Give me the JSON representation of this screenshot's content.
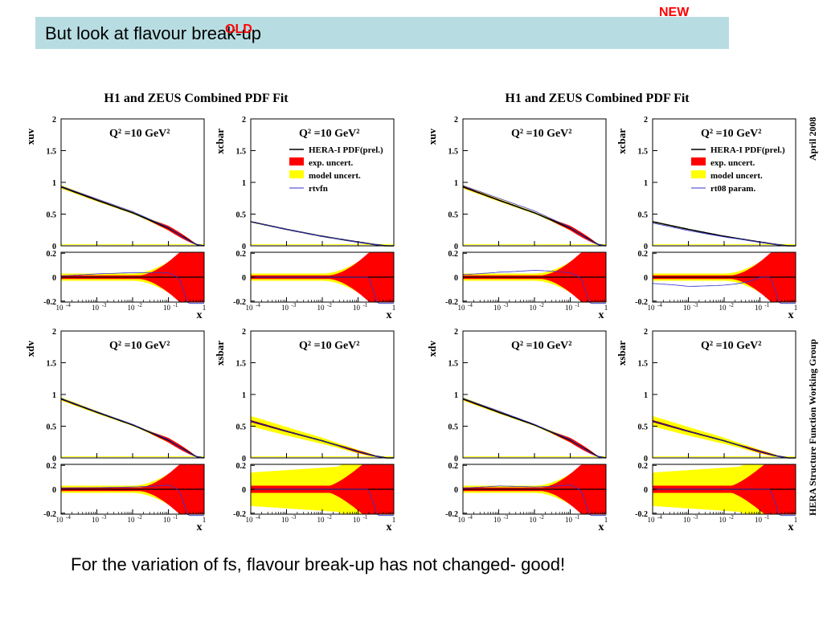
{
  "slide": {
    "title": "But look at flavour break-up",
    "label_old": "OLD",
    "label_new": "NEW",
    "caption": "For the variation of fs, flavour break-up has not changed- good!"
  },
  "figures": [
    {
      "title": "H1 and ZEUS Combined PDF Fit",
      "legend": [
        "HERA-I PDF(prel.)",
        "exp. uncert.",
        "model uncert.",
        "rtvfn"
      ]
    },
    {
      "title": "H1 and ZEUS Combined PDF Fit",
      "legend": [
        "HERA-I PDF(prel.)",
        "exp. uncert.",
        "model uncert.",
        "rt08 param."
      ],
      "side_label_top": "April 2008",
      "side_label_bottom": "HERA Structure Function Working Group"
    }
  ],
  "colors": {
    "title_bar": "#b7dde2",
    "exp_uncert": "#ff0000",
    "model_uncert": "#ffff00",
    "central": "#000000",
    "comparison": "#3333cc",
    "old_new_labels": "#ff0000"
  },
  "chart_data": [
    {
      "type": "line",
      "figure": "OLD",
      "panel": "xuv",
      "ylabel": "xuv",
      "annotation": "Q² =10 GeV²",
      "xscale": "log",
      "xlim": [
        0.0001,
        1
      ],
      "ylim": [
        0,
        2
      ],
      "x": [
        0.0001,
        0.001,
        0.01,
        0.1,
        0.3,
        0.6,
        1
      ],
      "series": [
        {
          "name": "HERA-I PDF(prel.)",
          "values": [
            0.93,
            0.72,
            0.52,
            0.28,
            0.12,
            0.02,
            0.0
          ]
        },
        {
          "name": "rtvfn",
          "values": [
            0.94,
            0.74,
            0.54,
            0.29,
            0.11,
            0.02,
            0.0
          ]
        }
      ],
      "ratio_panel": {
        "ylim": [
          -0.2,
          0.2
        ],
        "xlabel": "x"
      }
    },
    {
      "type": "line",
      "figure": "OLD",
      "panel": "xcbar",
      "ylabel": "xcbar",
      "annotation": "Q² =10 GeV²",
      "xscale": "log",
      "xlim": [
        0.0001,
        1
      ],
      "ylim": [
        0,
        2
      ],
      "x": [
        0.0001,
        0.001,
        0.01,
        0.1,
        0.3,
        0.6,
        1
      ],
      "series": [
        {
          "name": "HERA-I PDF(prel.)",
          "values": [
            0.38,
            0.26,
            0.15,
            0.06,
            0.02,
            0.0,
            0.0
          ]
        },
        {
          "name": "rtvfn",
          "values": [
            0.38,
            0.26,
            0.15,
            0.06,
            0.02,
            0.0,
            0.0
          ]
        }
      ],
      "ratio_panel": {
        "ylim": [
          -0.2,
          0.2
        ],
        "xlabel": "x"
      }
    },
    {
      "type": "line",
      "figure": "OLD",
      "panel": "xdv",
      "ylabel": "xdv",
      "annotation": "Q² =10 GeV²",
      "xscale": "log",
      "xlim": [
        0.0001,
        1
      ],
      "ylim": [
        0,
        2
      ],
      "x": [
        0.0001,
        0.001,
        0.01,
        0.1,
        0.3,
        0.6,
        1
      ],
      "series": [
        {
          "name": "HERA-I PDF(prel.)",
          "values": [
            0.93,
            0.72,
            0.52,
            0.28,
            0.12,
            0.02,
            0.0
          ]
        },
        {
          "name": "rtvfn",
          "values": [
            0.94,
            0.73,
            0.53,
            0.29,
            0.11,
            0.02,
            0.0
          ]
        }
      ],
      "ratio_panel": {
        "ylim": [
          -0.2,
          0.2
        ],
        "xlabel": "x"
      }
    },
    {
      "type": "line",
      "figure": "OLD",
      "panel": "xsbar",
      "ylabel": "xsbar",
      "annotation": "Q² =10 GeV²",
      "xscale": "log",
      "xlim": [
        0.0001,
        1
      ],
      "ylim": [
        0,
        2
      ],
      "x": [
        0.0001,
        0.001,
        0.01,
        0.1,
        0.3,
        0.6,
        1
      ],
      "series": [
        {
          "name": "HERA-I PDF(prel.)",
          "values": [
            0.58,
            0.42,
            0.27,
            0.1,
            0.03,
            0.0,
            0.0
          ]
        },
        {
          "name": "rtvfn",
          "values": [
            0.58,
            0.42,
            0.27,
            0.1,
            0.03,
            0.0,
            0.0
          ]
        }
      ],
      "ratio_panel": {
        "ylim": [
          -0.2,
          0.2
        ],
        "xlabel": "x"
      }
    },
    {
      "type": "line",
      "figure": "NEW",
      "panel": "xuv",
      "ylabel": "xuv",
      "annotation": "Q² =10 GeV²",
      "xscale": "log",
      "xlim": [
        0.0001,
        1
      ],
      "ylim": [
        0,
        2
      ],
      "x": [
        0.0001,
        0.001,
        0.01,
        0.1,
        0.3,
        0.6,
        1
      ],
      "series": [
        {
          "name": "HERA-I PDF(prel.)",
          "values": [
            0.93,
            0.72,
            0.52,
            0.28,
            0.12,
            0.02,
            0.0
          ]
        },
        {
          "name": "rt08 param.",
          "values": [
            0.95,
            0.75,
            0.55,
            0.29,
            0.11,
            0.02,
            0.0
          ]
        }
      ],
      "ratio_panel": {
        "ylim": [
          -0.2,
          0.2
        ],
        "xlabel": "x"
      }
    },
    {
      "type": "line",
      "figure": "NEW",
      "panel": "xcbar",
      "ylabel": "xcbar",
      "annotation": "Q² =10 GeV²",
      "xscale": "log",
      "xlim": [
        0.0001,
        1
      ],
      "ylim": [
        0,
        2
      ],
      "x": [
        0.0001,
        0.001,
        0.01,
        0.1,
        0.3,
        0.6,
        1
      ],
      "series": [
        {
          "name": "HERA-I PDF(prel.)",
          "values": [
            0.38,
            0.26,
            0.15,
            0.06,
            0.02,
            0.0,
            0.0
          ]
        },
        {
          "name": "rt08 param.",
          "values": [
            0.36,
            0.24,
            0.14,
            0.06,
            0.02,
            0.0,
            0.0
          ]
        }
      ],
      "ratio_panel": {
        "ylim": [
          -0.2,
          0.2
        ],
        "xlabel": "x"
      }
    },
    {
      "type": "line",
      "figure": "NEW",
      "panel": "xdv",
      "ylabel": "xdv",
      "annotation": "Q² =10 GeV²",
      "xscale": "log",
      "xlim": [
        0.0001,
        1
      ],
      "ylim": [
        0,
        2
      ],
      "x": [
        0.0001,
        0.001,
        0.01,
        0.1,
        0.3,
        0.6,
        1
      ],
      "series": [
        {
          "name": "HERA-I PDF(prel.)",
          "values": [
            0.93,
            0.72,
            0.52,
            0.28,
            0.12,
            0.02,
            0.0
          ]
        },
        {
          "name": "rt08 param.",
          "values": [
            0.94,
            0.74,
            0.53,
            0.29,
            0.11,
            0.02,
            0.0
          ]
        }
      ],
      "ratio_panel": {
        "ylim": [
          -0.2,
          0.2
        ],
        "xlabel": "x"
      }
    },
    {
      "type": "line",
      "figure": "NEW",
      "panel": "xsbar",
      "ylabel": "xsbar",
      "annotation": "Q² =10 GeV²",
      "xscale": "log",
      "xlim": [
        0.0001,
        1
      ],
      "ylim": [
        0,
        2
      ],
      "x": [
        0.0001,
        0.001,
        0.01,
        0.1,
        0.3,
        0.6,
        1
      ],
      "series": [
        {
          "name": "HERA-I PDF(prel.)",
          "values": [
            0.58,
            0.42,
            0.27,
            0.1,
            0.03,
            0.0,
            0.0
          ]
        },
        {
          "name": "rt08 param.",
          "values": [
            0.58,
            0.42,
            0.27,
            0.1,
            0.03,
            0.0,
            0.0
          ]
        }
      ],
      "ratio_panel": {
        "ylim": [
          -0.2,
          0.2
        ],
        "xlabel": "x"
      }
    }
  ]
}
